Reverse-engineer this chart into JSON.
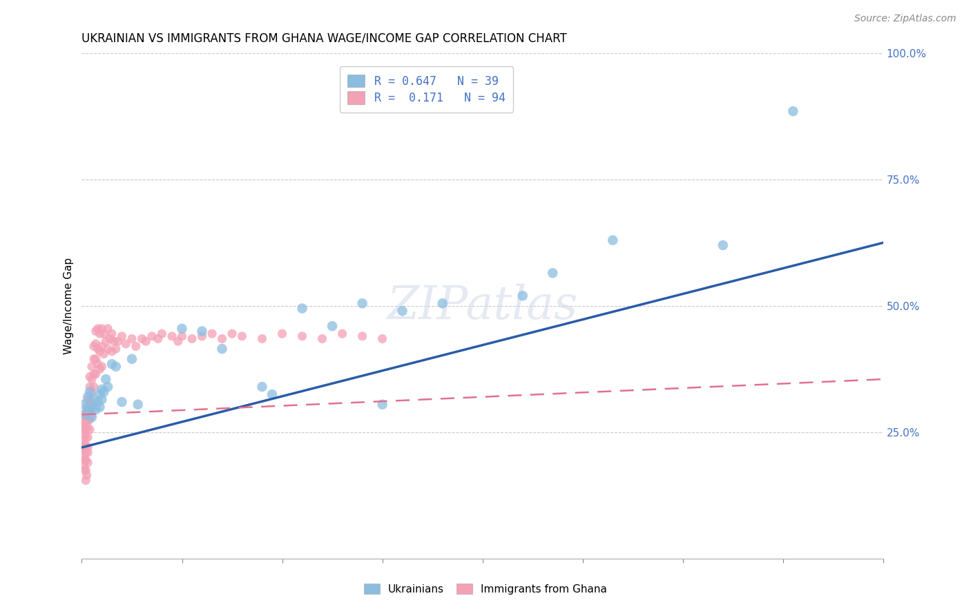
{
  "title": "UKRAINIAN VS IMMIGRANTS FROM GHANA WAGE/INCOME GAP CORRELATION CHART",
  "source": "Source: ZipAtlas.com",
  "ylabel": "Wage/Income Gap",
  "legend_blue_R": "0.647",
  "legend_blue_N": "39",
  "legend_pink_R": "0.171",
  "legend_pink_N": "94",
  "blue_color": "#8BBDE0",
  "pink_color": "#F4A0B5",
  "blue_line_color": "#2B5BA8",
  "pink_line_color": "#E07090",
  "watermark": "ZIPatlas",
  "blue_line_x0": 0.0,
  "blue_line_y0": 0.22,
  "blue_line_x1": 0.4,
  "blue_line_y1": 0.625,
  "pink_line_x0": 0.0,
  "pink_line_y0": 0.285,
  "pink_line_x1": 0.4,
  "pink_line_y1": 0.355,
  "blue_scatter_x": [
    0.001,
    0.002,
    0.003,
    0.003,
    0.004,
    0.004,
    0.005,
    0.006,
    0.006,
    0.007,
    0.008,
    0.009,
    0.009,
    0.01,
    0.01,
    0.011,
    0.012,
    0.013,
    0.015,
    0.017,
    0.02,
    0.025,
    0.028,
    0.05,
    0.06,
    0.07,
    0.09,
    0.095,
    0.11,
    0.125,
    0.14,
    0.15,
    0.16,
    0.18,
    0.22,
    0.235,
    0.265,
    0.32,
    0.355
  ],
  "blue_scatter_y": [
    0.305,
    0.285,
    0.3,
    0.32,
    0.295,
    0.33,
    0.28,
    0.315,
    0.3,
    0.295,
    0.31,
    0.3,
    0.325,
    0.315,
    0.335,
    0.33,
    0.355,
    0.34,
    0.385,
    0.38,
    0.31,
    0.395,
    0.305,
    0.455,
    0.45,
    0.415,
    0.34,
    0.325,
    0.495,
    0.46,
    0.505,
    0.305,
    0.49,
    0.505,
    0.52,
    0.565,
    0.63,
    0.62,
    0.885
  ],
  "pink_scatter_x": [
    0.0005,
    0.0005,
    0.001,
    0.001,
    0.001,
    0.001,
    0.001,
    0.001,
    0.001,
    0.001,
    0.0015,
    0.0015,
    0.002,
    0.002,
    0.002,
    0.002,
    0.002,
    0.002,
    0.002,
    0.002,
    0.002,
    0.0025,
    0.003,
    0.003,
    0.003,
    0.003,
    0.003,
    0.003,
    0.003,
    0.003,
    0.004,
    0.004,
    0.004,
    0.004,
    0.004,
    0.004,
    0.005,
    0.005,
    0.005,
    0.005,
    0.005,
    0.006,
    0.006,
    0.006,
    0.006,
    0.007,
    0.007,
    0.007,
    0.007,
    0.008,
    0.008,
    0.008,
    0.009,
    0.009,
    0.009,
    0.01,
    0.01,
    0.01,
    0.011,
    0.011,
    0.012,
    0.013,
    0.013,
    0.014,
    0.015,
    0.015,
    0.016,
    0.017,
    0.018,
    0.02,
    0.022,
    0.025,
    0.027,
    0.03,
    0.032,
    0.035,
    0.038,
    0.04,
    0.045,
    0.048,
    0.05,
    0.055,
    0.06,
    0.065,
    0.07,
    0.075,
    0.08,
    0.09,
    0.1,
    0.11,
    0.12,
    0.13,
    0.14,
    0.15
  ],
  "pink_scatter_y": [
    0.26,
    0.22,
    0.285,
    0.27,
    0.255,
    0.24,
    0.225,
    0.215,
    0.2,
    0.185,
    0.195,
    0.175,
    0.29,
    0.27,
    0.255,
    0.24,
    0.225,
    0.21,
    0.195,
    0.175,
    0.155,
    0.165,
    0.315,
    0.295,
    0.275,
    0.26,
    0.24,
    0.22,
    0.21,
    0.19,
    0.36,
    0.34,
    0.315,
    0.295,
    0.275,
    0.255,
    0.38,
    0.355,
    0.33,
    0.305,
    0.285,
    0.42,
    0.395,
    0.365,
    0.34,
    0.45,
    0.425,
    0.395,
    0.365,
    0.455,
    0.415,
    0.385,
    0.445,
    0.41,
    0.375,
    0.455,
    0.42,
    0.38,
    0.445,
    0.405,
    0.43,
    0.455,
    0.415,
    0.435,
    0.445,
    0.41,
    0.43,
    0.415,
    0.43,
    0.44,
    0.425,
    0.435,
    0.42,
    0.435,
    0.43,
    0.44,
    0.435,
    0.445,
    0.44,
    0.43,
    0.44,
    0.435,
    0.44,
    0.445,
    0.435,
    0.445,
    0.44,
    0.435,
    0.445,
    0.44,
    0.435,
    0.445,
    0.44,
    0.435
  ],
  "xlim": [
    0,
    0.4
  ],
  "ylim": [
    0,
    1.0
  ],
  "ytick_vals": [
    0.25,
    0.5,
    0.75,
    1.0
  ],
  "ytick_labels": [
    "25.0%",
    "50.0%",
    "75.0%",
    "100.0%"
  ],
  "title_fontsize": 12,
  "source_fontsize": 10,
  "scatter_size_blue": 110,
  "scatter_size_pink": 90
}
